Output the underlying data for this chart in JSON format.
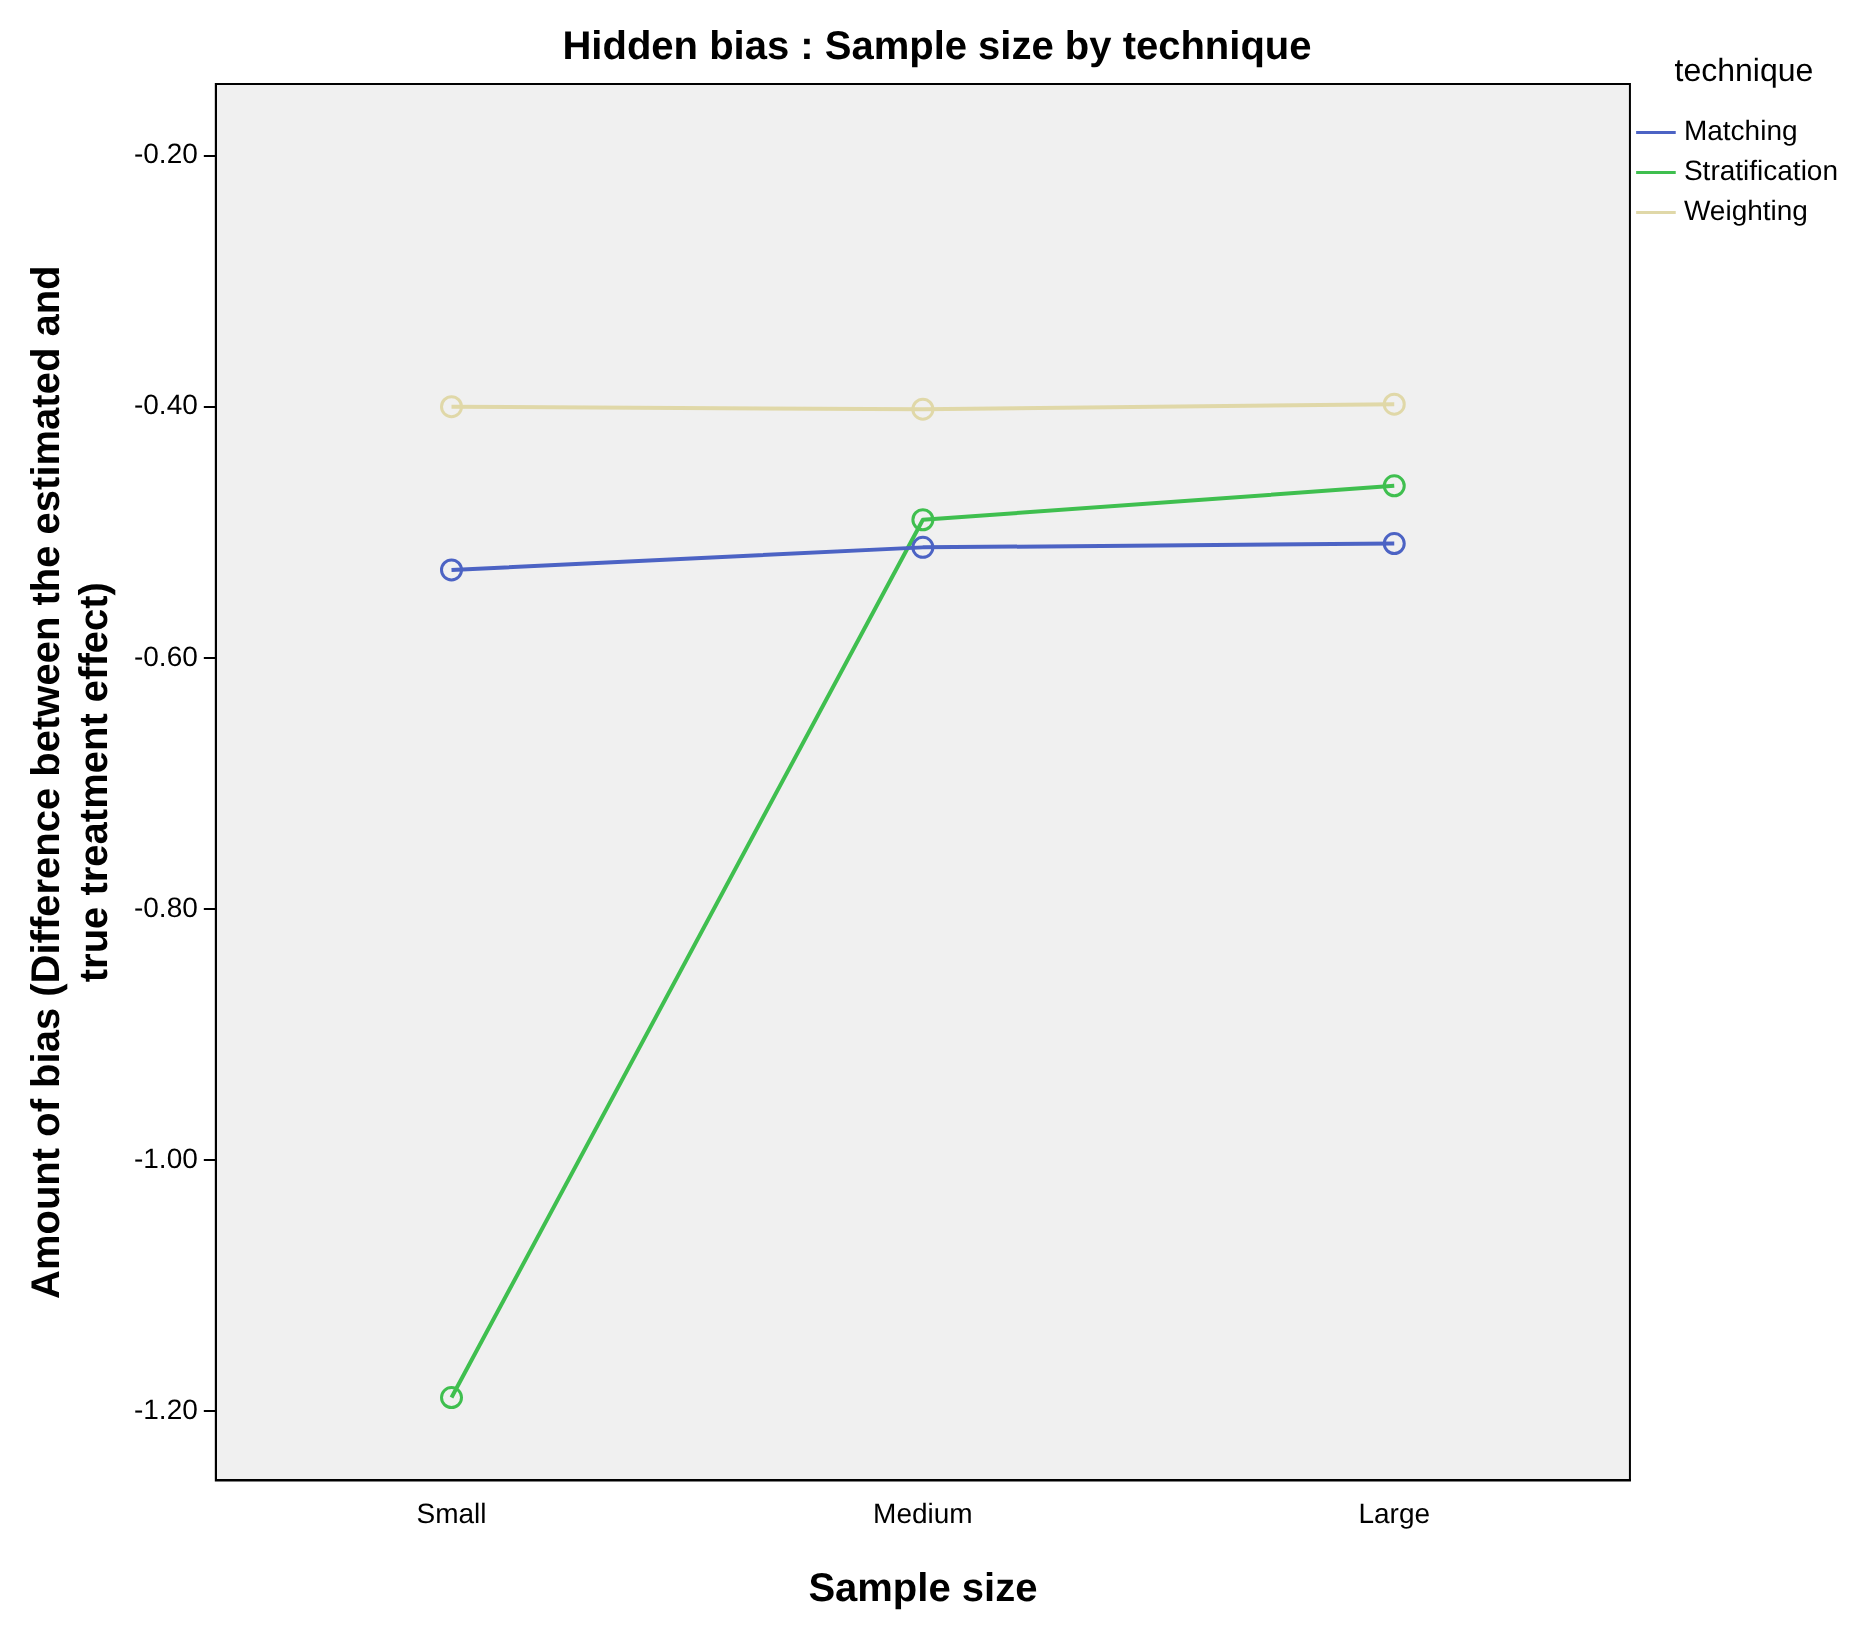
{
  "chart_data": {
    "type": "line",
    "title": "Hidden bias : Sample size by technique",
    "xlabel": "Sample size",
    "ylabel": "Amount of bias (Difference between the estimated and\ntrue treatment effect)",
    "legend_title": "technique",
    "legend": "right",
    "marker": "circle",
    "grid": false,
    "categories": [
      "Small",
      "Medium",
      "Large"
    ],
    "series": [
      {
        "name": "Matching",
        "color": "#4c63c4",
        "values": [
          -0.53,
          -0.512,
          -0.509
        ]
      },
      {
        "name": "Stratification",
        "color": "#3fbf4f",
        "values": [
          -1.189,
          -0.49,
          -0.463
        ]
      },
      {
        "name": "Weighting",
        "color": "#e0d8a8",
        "values": [
          -0.4,
          -0.402,
          -0.398
        ]
      }
    ],
    "ylim": [
      -1.255,
      -0.143
    ],
    "yticks": [
      {
        "value": -1.2,
        "label": "-1.20"
      },
      {
        "value": -1.0,
        "label": "-1.00"
      },
      {
        "value": -0.8,
        "label": "-0.80"
      },
      {
        "value": -0.6,
        "label": "-0.60"
      },
      {
        "value": -0.4,
        "label": "-0.40"
      },
      {
        "value": -0.2,
        "label": "-0.20"
      }
    ]
  }
}
